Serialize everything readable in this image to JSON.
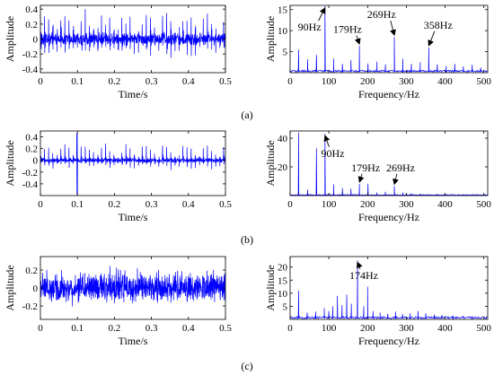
{
  "figure": {
    "panel_labels": [
      "(a)",
      "(b)",
      "(c)"
    ]
  },
  "colors": {
    "signal": "#0000ff",
    "axes": "#000000"
  },
  "chart_data": [
    {
      "id": "a-time",
      "type": "line",
      "kind": "time",
      "xlabel": "Time/s",
      "ylabel": "Amplitude",
      "xlim": [
        0,
        0.5
      ],
      "ylim": [
        -0.45,
        0.45
      ],
      "xticks": [
        0,
        0.1,
        0.2,
        0.3,
        0.4,
        0.5
      ],
      "xticklabels": [
        "0",
        "0.1",
        "0.2",
        "0.3",
        "0.4",
        "0.5"
      ],
      "yticks": [
        -0.4,
        -0.2,
        0,
        0.2,
        0.4
      ],
      "yticklabels": [
        "-0.4",
        "-0.2",
        "0",
        "0.2",
        "0.4"
      ],
      "signal": {
        "noise_amp": 0.09,
        "impulse_period": 0.011,
        "impulse_amp": 0.38,
        "impulse_decay": 0.0015,
        "carrier_hz": 700
      }
    },
    {
      "id": "a-freq",
      "type": "line",
      "kind": "spectrum",
      "xlabel": "Frequency/Hz",
      "ylabel": "Amplitude",
      "xlim": [
        0,
        510
      ],
      "ylim": [
        0,
        16
      ],
      "xticks": [
        0,
        100,
        200,
        300,
        400,
        500
      ],
      "xticklabels": [
        "0",
        "100",
        "200",
        "300",
        "400",
        "500"
      ],
      "yticks": [
        5,
        10,
        15
      ],
      "yticklabels": [
        "5",
        "10",
        "15"
      ],
      "baseline": 0.5,
      "peaks": [
        [
          22,
          5.5
        ],
        [
          45,
          3.2
        ],
        [
          68,
          4.2
        ],
        [
          90,
          15.8
        ],
        [
          112,
          3.4
        ],
        [
          135,
          2.1
        ],
        [
          157,
          3.0
        ],
        [
          179,
          6.4
        ],
        [
          201,
          2.2
        ],
        [
          224,
          2.6
        ],
        [
          246,
          2.0
        ],
        [
          269,
          8.5
        ],
        [
          291,
          3.3
        ],
        [
          313,
          2.1
        ],
        [
          336,
          2.5
        ],
        [
          358,
          6.0
        ],
        [
          380,
          2.0
        ],
        [
          403,
          1.6
        ],
        [
          425,
          2.1
        ],
        [
          447,
          1.5
        ],
        [
          470,
          1.9
        ],
        [
          492,
          1.2
        ]
      ],
      "annotations": [
        {
          "text": "90Hz",
          "x": 90,
          "y": 15.8,
          "tx": 50,
          "ty": 10.0
        },
        {
          "text": "179Hz",
          "x": 179,
          "y": 6.4,
          "tx": 148,
          "ty": 9.5
        },
        {
          "text": "269Hz",
          "x": 269,
          "y": 8.5,
          "tx": 236,
          "ty": 13.0
        },
        {
          "text": "358Hz",
          "x": 358,
          "y": 6.0,
          "tx": 382,
          "ty": 10.5
        }
      ]
    },
    {
      "id": "b-time",
      "type": "line",
      "kind": "time",
      "xlabel": "Time/s",
      "ylabel": "Amplitude",
      "xlim": [
        0,
        0.5
      ],
      "ylim": [
        -0.6,
        0.5
      ],
      "xticks": [
        0,
        0.1,
        0.2,
        0.3,
        0.4,
        0.5
      ],
      "xticklabels": [
        "0",
        "0.1",
        "0.2",
        "0.3",
        "0.4",
        "0.5"
      ],
      "yticks": [
        -0.4,
        -0.2,
        0,
        0.2,
        0.4
      ],
      "yticklabels": [
        "-0.4",
        "-0.2",
        "0",
        "0.2",
        "0.4"
      ],
      "signal": {
        "noise_amp": 0.04,
        "impulse_period": 0.011,
        "impulse_amp": 0.3,
        "impulse_decay": 0.0012,
        "carrier_hz": 650,
        "big_spike_t": 0.099,
        "big_spike_amp": 0.58
      }
    },
    {
      "id": "b-freq",
      "type": "line",
      "kind": "spectrum",
      "xlabel": "Frequency/Hz",
      "ylabel": "Amplitude",
      "xlim": [
        0,
        510
      ],
      "ylim": [
        0,
        45
      ],
      "xticks": [
        0,
        100,
        200,
        300,
        400,
        500
      ],
      "xticklabels": [
        "0",
        "100",
        "200",
        "300",
        "400",
        "500"
      ],
      "yticks": [
        20,
        40
      ],
      "yticklabels": [
        "20",
        "40"
      ],
      "baseline": 0.6,
      "peaks": [
        [
          22,
          44
        ],
        [
          45,
          4.2
        ],
        [
          68,
          33
        ],
        [
          90,
          43
        ],
        [
          112,
          7.8
        ],
        [
          135,
          5.2
        ],
        [
          157,
          4.8
        ],
        [
          179,
          8.2
        ],
        [
          201,
          8.4
        ],
        [
          224,
          2.1
        ],
        [
          246,
          2.6
        ],
        [
          269,
          6.6
        ],
        [
          291,
          2.1
        ],
        [
          313,
          1.5
        ],
        [
          336,
          1.2
        ],
        [
          358,
          1.0
        ],
        [
          380,
          0.9
        ]
      ],
      "annotations": [
        {
          "text": "90Hz",
          "x": 90,
          "y": 43,
          "tx": 110,
          "ty": 27
        },
        {
          "text": "179Hz",
          "x": 179,
          "y": 8.2,
          "tx": 195,
          "ty": 17
        },
        {
          "text": "269Hz",
          "x": 269,
          "y": 6.6,
          "tx": 285,
          "ty": 17
        }
      ]
    },
    {
      "id": "c-time",
      "type": "line",
      "kind": "time",
      "xlabel": "Time/s",
      "ylabel": "Amplitude",
      "xlim": [
        0,
        0.5
      ],
      "ylim": [
        -0.35,
        0.35
      ],
      "xticks": [
        0,
        0.1,
        0.2,
        0.3,
        0.4,
        0.5
      ],
      "xticklabels": [
        "0",
        "0.1",
        "0.2",
        "0.3",
        "0.4",
        "0.5"
      ],
      "yticks": [
        -0.2,
        0,
        0.2
      ],
      "yticklabels": [
        "-0.2",
        "0",
        "0.2"
      ],
      "signal": {
        "noise_amp": 0.17,
        "impulse_period": 0.0057,
        "impulse_amp": 0.14,
        "impulse_decay": 0.0015,
        "carrier_hz": 500
      }
    },
    {
      "id": "c-freq",
      "type": "line",
      "kind": "spectrum",
      "xlabel": "Frequency/Hz",
      "ylabel": "Amplitude",
      "xlim": [
        0,
        510
      ],
      "ylim": [
        0,
        24
      ],
      "xticks": [
        0,
        100,
        200,
        300,
        400,
        500
      ],
      "xticklabels": [
        "0",
        "100",
        "200",
        "300",
        "400",
        "500"
      ],
      "yticks": [
        5,
        10,
        15,
        20
      ],
      "yticklabels": [
        "5",
        "10",
        "15",
        "20"
      ],
      "baseline": 0.9,
      "peaks": [
        [
          22,
          11
        ],
        [
          44,
          2.6
        ],
        [
          66,
          3.0
        ],
        [
          88,
          4.3
        ],
        [
          100,
          3.2
        ],
        [
          110,
          5.0
        ],
        [
          122,
          9.0
        ],
        [
          134,
          5.5
        ],
        [
          146,
          9.5
        ],
        [
          158,
          6.0
        ],
        [
          174,
          22.5
        ],
        [
          190,
          5.0
        ],
        [
          200,
          12.5
        ],
        [
          214,
          3.2
        ],
        [
          232,
          2.6
        ],
        [
          252,
          2.1
        ],
        [
          272,
          3.0
        ],
        [
          290,
          2.1
        ],
        [
          310,
          2.3
        ],
        [
          330,
          3.2
        ],
        [
          350,
          2.3
        ],
        [
          372,
          1.8
        ],
        [
          392,
          1.6
        ],
        [
          420,
          1.5
        ],
        [
          448,
          1.3
        ],
        [
          470,
          1.2
        ]
      ],
      "annotations": [
        {
          "text": "174Hz",
          "x": 174,
          "y": 22.5,
          "tx": 190,
          "ty": 15.5
        }
      ]
    }
  ]
}
